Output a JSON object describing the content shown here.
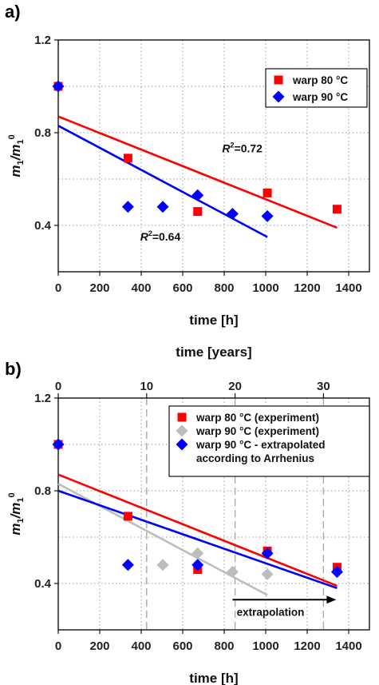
{
  "chart_data": [
    {
      "panel_label": "a)",
      "type": "scatter",
      "xlabel": "time [h]",
      "ylabel": "m1/m1^0",
      "ylabel_parts": {
        "base": "m",
        "sub": "1",
        "sep": "/",
        "base2": "m",
        "sub2": "1",
        "sup2": "0"
      },
      "xlim": [
        0,
        1500
      ],
      "ylim": [
        0.2,
        1.2
      ],
      "xticks": [
        0,
        200,
        400,
        600,
        800,
        1000,
        1200,
        1400
      ],
      "xtick_labels": [
        "0",
        "200",
        "400",
        "600",
        "800",
        "1000",
        "1200",
        "1400"
      ],
      "yticks": [
        0.4,
        0.8,
        1.2
      ],
      "ytick_labels": [
        "0.4",
        "0.8",
        "1.2"
      ],
      "grid": true,
      "legend_position": "top-right",
      "series": [
        {
          "name": "warp 80 °C",
          "marker": "square",
          "color": "#ff0000",
          "points": [
            [
              0,
              1.0
            ],
            [
              336,
              0.69
            ],
            [
              672,
              0.46
            ],
            [
              1008,
              0.54
            ],
            [
              1344,
              0.47
            ]
          ],
          "fit": {
            "x": [
              0,
              1344
            ],
            "y": [
              0.87,
              0.39
            ],
            "r2_label": "R",
            "r2_sup": "2",
            "r2_value": "=0.72",
            "label_at": [
              790,
              0.715
            ]
          }
        },
        {
          "name": "warp 90 °C",
          "marker": "diamond",
          "color": "#0000ff",
          "points": [
            [
              0,
              1.0
            ],
            [
              336,
              0.48
            ],
            [
              504,
              0.48
            ],
            [
              672,
              0.53
            ],
            [
              840,
              0.45
            ],
            [
              1008,
              0.44
            ]
          ],
          "fit": {
            "x": [
              0,
              1008
            ],
            "y": [
              0.83,
              0.35
            ],
            "r2_label": "R",
            "r2_sup": "2",
            "r2_value": "=0.64",
            "label_at": [
              395,
              0.335
            ]
          }
        }
      ]
    },
    {
      "panel_label": "b)",
      "type": "scatter",
      "xlabel": "time [h]",
      "x2label": "time [years]",
      "ylabel": "m1/m1^0",
      "ylabel_parts": {
        "base": "m",
        "sub": "1",
        "sep": "/",
        "base2": "m",
        "sub2": "1",
        "sup2": "0"
      },
      "xlim": [
        0,
        1500
      ],
      "ylim": [
        0.2,
        1.2
      ],
      "xticks": [
        0,
        200,
        400,
        600,
        800,
        1000,
        1200,
        1400
      ],
      "xtick_labels": [
        "0",
        "200",
        "400",
        "600",
        "800",
        "1000",
        "1200",
        "1400"
      ],
      "x2lim": [
        0,
        35.2
      ],
      "x2ticks": [
        0,
        10,
        20,
        30
      ],
      "x2tick_labels": [
        "0",
        "10",
        "20",
        "30"
      ],
      "yticks": [
        0.4,
        0.8,
        1.2
      ],
      "ytick_labels": [
        "0.4",
        "0.8",
        "1.2"
      ],
      "grid": true,
      "legend_position": "top-right",
      "annotation": {
        "text": "extrapolation",
        "arrow_from": [
          840,
          0.33
        ],
        "arrow_to": [
          1340,
          0.33
        ],
        "text_at": [
          860,
          0.26
        ]
      },
      "series": [
        {
          "name": "warp 80 °C (experiment)",
          "marker": "square",
          "color": "#ff0000",
          "points": [
            [
              0,
              1.0
            ],
            [
              336,
              0.69
            ],
            [
              672,
              0.46
            ],
            [
              1008,
              0.54
            ],
            [
              1344,
              0.47
            ]
          ],
          "fit": {
            "x": [
              0,
              1344
            ],
            "y": [
              0.87,
              0.39
            ]
          }
        },
        {
          "name": "warp 90 °C (experiment)",
          "marker": "diamond",
          "color": "#bdbdbd",
          "points": [
            [
              0,
              1.0
            ],
            [
              336,
              0.48
            ],
            [
              504,
              0.48
            ],
            [
              672,
              0.53
            ],
            [
              840,
              0.45
            ],
            [
              1008,
              0.44
            ]
          ],
          "fit": {
            "x": [
              0,
              1008
            ],
            "y": [
              0.83,
              0.35
            ]
          }
        },
        {
          "name": "warp 90 °C - extrapolated",
          "name_line2": "according to Arrhenius",
          "marker": "diamond",
          "color": "#0000ff",
          "points": [
            [
              0,
              1.0
            ],
            [
              336,
              0.48
            ],
            [
              672,
              0.48
            ],
            [
              1008,
              0.53
            ],
            [
              1344,
              0.45
            ]
          ],
          "fit": {
            "x": [
              0,
              1344
            ],
            "y": [
              0.8,
              0.38
            ]
          }
        }
      ]
    }
  ]
}
